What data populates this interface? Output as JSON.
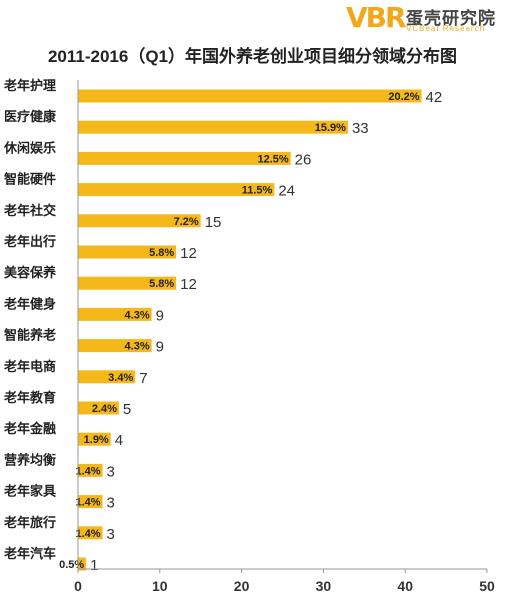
{
  "logo": {
    "mark": "VBR",
    "name_cn": "蛋壳研究院",
    "name_en": "VCBeat Research"
  },
  "title": "2011-2016（Q1）年国外养老创业项目细分领域分布图",
  "colors": {
    "bar": "#f5b81b",
    "label": "#222222",
    "axis": "#999999"
  },
  "chart_data": {
    "type": "bar",
    "orientation": "horizontal",
    "title": "2011-2016（Q1）年国外养老创业项目细分领域分布图",
    "categories": [
      "老年护理",
      "医疗健康",
      "休闲娱乐",
      "智能硬件",
      "老年社交",
      "老年出行",
      "美容保养",
      "老年健身",
      "智能养老",
      "老年电商",
      "老年教育",
      "老年金融",
      "营养均衡",
      "老年家具",
      "老年旅行",
      "老年汽车"
    ],
    "values": [
      42,
      33,
      26,
      24,
      15,
      12,
      12,
      9,
      9,
      7,
      5,
      4,
      3,
      3,
      3,
      1
    ],
    "percent_labels": [
      "20.2%",
      "15.9%",
      "12.5%",
      "11.5%",
      "7.2%",
      "5.8%",
      "5.8%",
      "4.3%",
      "4.3%",
      "3.4%",
      "2.4%",
      "1.9%",
      "1.4%",
      "1.4%",
      "1.4%",
      "0.5%"
    ],
    "xlim": [
      0,
      50
    ],
    "xticks": [
      "0",
      "10",
      "20",
      "30",
      "40",
      "50"
    ],
    "grid": false,
    "legend": "none"
  }
}
